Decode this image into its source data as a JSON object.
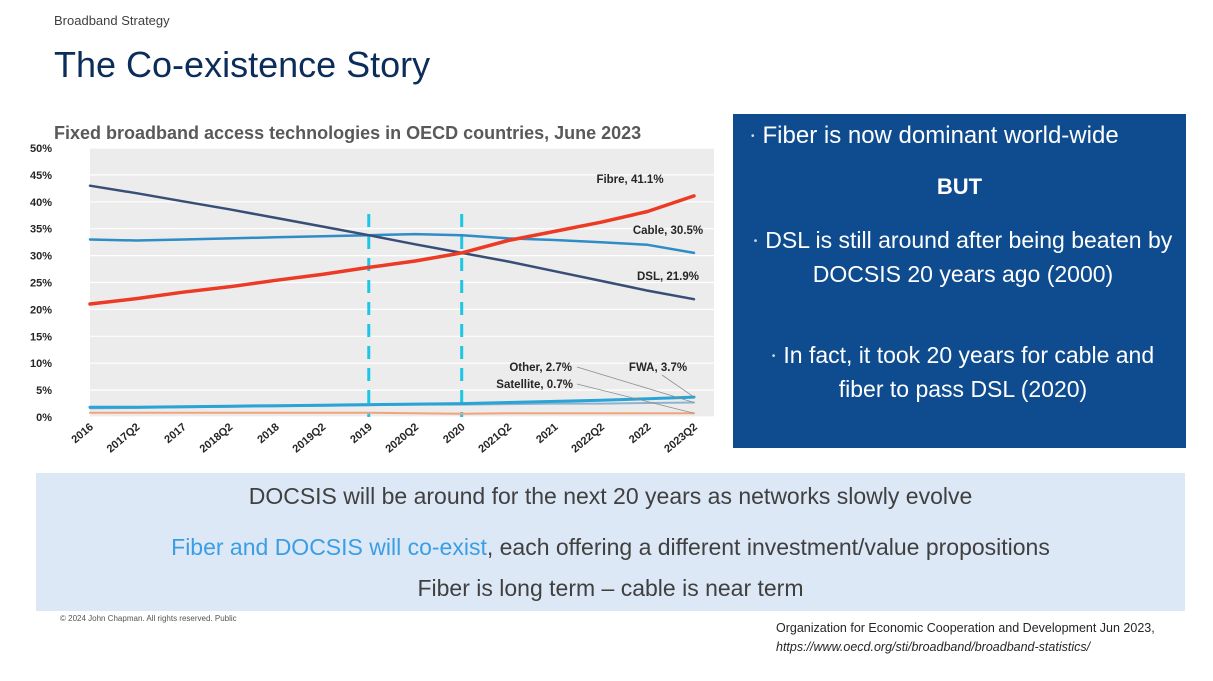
{
  "header": {
    "section": "Broadband Strategy",
    "title": "The Co-existence Story"
  },
  "chart_data": {
    "type": "line",
    "title": "Fixed broadband access technologies in OECD countries, June 2023",
    "categories": [
      "2016",
      "2017Q2",
      "2017",
      "2018Q2",
      "2018",
      "2019Q2",
      "2019",
      "2020Q2",
      "2020",
      "2021Q2",
      "2021",
      "2022Q2",
      "2022",
      "2023Q2"
    ],
    "ylim": [
      0,
      50
    ],
    "yticks": [
      "0%",
      "5%",
      "10%",
      "15%",
      "20%",
      "25%",
      "30%",
      "35%",
      "40%",
      "45%",
      "50%"
    ],
    "grid": true,
    "series": [
      {
        "name": "Fibre",
        "label": "Fibre, 41.1%",
        "color": "#ec3a24",
        "width": 3.5,
        "values": [
          21.0,
          22.0,
          23.2,
          24.2,
          25.4,
          26.5,
          27.8,
          29.0,
          30.5,
          32.8,
          34.5,
          36.2,
          38.2,
          41.1
        ]
      },
      {
        "name": "Cable",
        "label": "Cable, 30.5%",
        "color": "#2e8cc7",
        "width": 2.5,
        "values": [
          33.0,
          32.8,
          33.0,
          33.2,
          33.4,
          33.6,
          33.8,
          34.0,
          33.8,
          33.2,
          32.9,
          32.5,
          32.0,
          30.5
        ]
      },
      {
        "name": "DSL",
        "label": "DSL, 21.9%",
        "color": "#384e77",
        "width": 2.5,
        "values": [
          43.0,
          41.6,
          40.1,
          38.6,
          37.0,
          35.4,
          33.8,
          32.1,
          30.5,
          28.9,
          27.1,
          25.3,
          23.5,
          21.9
        ]
      },
      {
        "name": "FWA",
        "label": "FWA, 3.7%",
        "color": "#2aa4d6",
        "width": 3,
        "values": [
          1.8,
          1.8,
          1.9,
          2.0,
          2.1,
          2.2,
          2.3,
          2.4,
          2.5,
          2.7,
          2.9,
          3.1,
          3.4,
          3.7
        ]
      },
      {
        "name": "Other",
        "label": "Other, 2.7%",
        "color": "#8fb2cf",
        "width": 2,
        "values": [
          1.6,
          1.7,
          1.8,
          1.9,
          2.0,
          2.1,
          2.2,
          2.3,
          2.3,
          2.4,
          2.5,
          2.5,
          2.6,
          2.7
        ]
      },
      {
        "name": "Satellite",
        "label": "Satellite, 0.7%",
        "color": "#f2a37a",
        "width": 2,
        "values": [
          0.8,
          0.8,
          0.8,
          0.8,
          0.8,
          0.8,
          0.8,
          0.7,
          0.6,
          0.7,
          0.7,
          0.7,
          0.7,
          0.7
        ]
      }
    ],
    "markers": [
      {
        "category": "2019",
        "style": "dashed",
        "color": "#1ec6e6"
      },
      {
        "category": "2020",
        "style": "dashed",
        "color": "#1ec6e6"
      }
    ]
  },
  "callout": {
    "bullet1": "Fiber is now dominant world-wide",
    "but": "BUT",
    "bullet2": "DSL is still around after being beaten by DOCSIS 20 years ago (2000)",
    "bullet3": "In fact, it took 20 years for cable and fiber to pass DSL (2020)",
    "bullet_glyph": "•"
  },
  "summary": {
    "line1": "DOCSIS will be around for the next 20 years as networks slowly evolve",
    "line2_highlight": "Fiber and DOCSIS will co-exist",
    "line2_rest": ", each offering a different investment/value propositions",
    "line3": "Fiber is long term – cable is near term"
  },
  "footer": {
    "copyright": "© 2024  John Chapman. All rights reserved. Public",
    "source_org": "Organization for Economic Cooperation and Development Jun 2023,",
    "source_url": "https://www.oecd.org/sti/broadband/broadband-statistics/"
  }
}
